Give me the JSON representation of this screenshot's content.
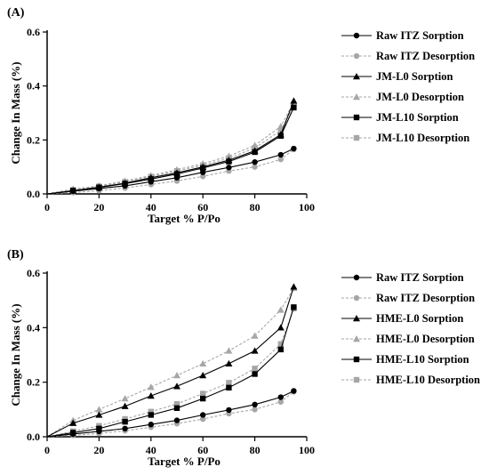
{
  "chart_data": [
    {
      "type": "line",
      "panel_label": "(A)",
      "xlabel": "Target % P/Po",
      "ylabel": "Change In Mass (%)",
      "xlim": [
        0,
        100
      ],
      "ylim": [
        0,
        0.6
      ],
      "xticks": [
        0,
        20,
        40,
        60,
        80,
        100
      ],
      "yticks": [
        0.0,
        0.2,
        0.4,
        0.6
      ],
      "ytick_labels": [
        "0.0",
        "0.2",
        "0.4",
        "0.6"
      ],
      "x": [
        0,
        10,
        20,
        30,
        40,
        50,
        60,
        70,
        80,
        90,
        95
      ],
      "legend_position": "right",
      "series": [
        {
          "name": "Raw ITZ Sorption",
          "style": "solid",
          "marker": "circle",
          "color": "#000000",
          "values": [
            0,
            0.01,
            0.02,
            0.03,
            0.045,
            0.06,
            0.08,
            0.098,
            0.118,
            0.145,
            0.168
          ]
        },
        {
          "name": "Raw ITZ Desorption",
          "style": "dashed",
          "marker": "circle",
          "color": "#a6a6a6",
          "values": [
            0,
            0.005,
            0.012,
            0.022,
            0.035,
            0.048,
            0.065,
            0.085,
            0.1,
            0.128,
            0.165
          ]
        },
        {
          "name": "JM-L0 Sorption",
          "style": "solid",
          "marker": "triangle",
          "color": "#000000",
          "values": [
            0,
            0.012,
            0.025,
            0.04,
            0.06,
            0.078,
            0.1,
            0.125,
            0.16,
            0.22,
            0.345
          ]
        },
        {
          "name": "JM-L0 Desorption",
          "style": "dashed",
          "marker": "triangle",
          "color": "#a6a6a6",
          "values": [
            0,
            0.018,
            0.03,
            0.048,
            0.068,
            0.09,
            0.112,
            0.14,
            0.18,
            0.25,
            0.34
          ]
        },
        {
          "name": "JM-L10 Sorption",
          "style": "solid",
          "marker": "square",
          "color": "#000000",
          "values": [
            0,
            0.012,
            0.024,
            0.038,
            0.055,
            0.074,
            0.096,
            0.12,
            0.155,
            0.215,
            0.32
          ]
        },
        {
          "name": "JM-L10 Desorption",
          "style": "dashed",
          "marker": "square",
          "color": "#a6a6a6",
          "values": [
            0,
            0.015,
            0.028,
            0.045,
            0.064,
            0.085,
            0.106,
            0.132,
            0.17,
            0.235,
            0.325
          ]
        }
      ]
    },
    {
      "type": "line",
      "panel_label": "(B)",
      "xlabel": "Target % P/Po",
      "ylabel": "Change In Mass (%)",
      "xlim": [
        0,
        100
      ],
      "ylim": [
        0,
        0.6
      ],
      "xticks": [
        0,
        20,
        40,
        60,
        80,
        100
      ],
      "yticks": [
        0.0,
        0.2,
        0.4,
        0.6
      ],
      "ytick_labels": [
        "0.0",
        "0.2",
        "0.4",
        "0.6"
      ],
      "x": [
        0,
        10,
        20,
        30,
        40,
        50,
        60,
        70,
        80,
        90,
        95
      ],
      "legend_position": "right",
      "series": [
        {
          "name": "Raw ITZ Sorption",
          "style": "solid",
          "marker": "circle",
          "color": "#000000",
          "values": [
            0,
            0.01,
            0.02,
            0.03,
            0.045,
            0.06,
            0.08,
            0.098,
            0.118,
            0.145,
            0.168
          ]
        },
        {
          "name": "Raw ITZ Desorption",
          "style": "dashed",
          "marker": "circle",
          "color": "#a6a6a6",
          "values": [
            0,
            0.005,
            0.012,
            0.022,
            0.035,
            0.048,
            0.065,
            0.085,
            0.1,
            0.128,
            0.165
          ]
        },
        {
          "name": "HME-L0 Sorption",
          "style": "solid",
          "marker": "triangle",
          "color": "#000000",
          "values": [
            0,
            0.05,
            0.08,
            0.112,
            0.15,
            0.185,
            0.225,
            0.268,
            0.315,
            0.4,
            0.55
          ]
        },
        {
          "name": "HME-L0 Desorption",
          "style": "dashed",
          "marker": "triangle",
          "color": "#a6a6a6",
          "values": [
            0,
            0.06,
            0.1,
            0.14,
            0.182,
            0.225,
            0.268,
            0.315,
            0.37,
            0.465,
            0.545
          ]
        },
        {
          "name": "HME-L10 Sorption",
          "style": "solid",
          "marker": "square",
          "color": "#000000",
          "values": [
            0,
            0.015,
            0.03,
            0.055,
            0.08,
            0.105,
            0.14,
            0.18,
            0.23,
            0.32,
            0.475
          ]
        },
        {
          "name": "HME-L10 Desorption",
          "style": "dashed",
          "marker": "square",
          "color": "#a6a6a6",
          "values": [
            0,
            0.02,
            0.04,
            0.065,
            0.092,
            0.12,
            0.158,
            0.198,
            0.25,
            0.34,
            0.47
          ]
        }
      ]
    }
  ]
}
